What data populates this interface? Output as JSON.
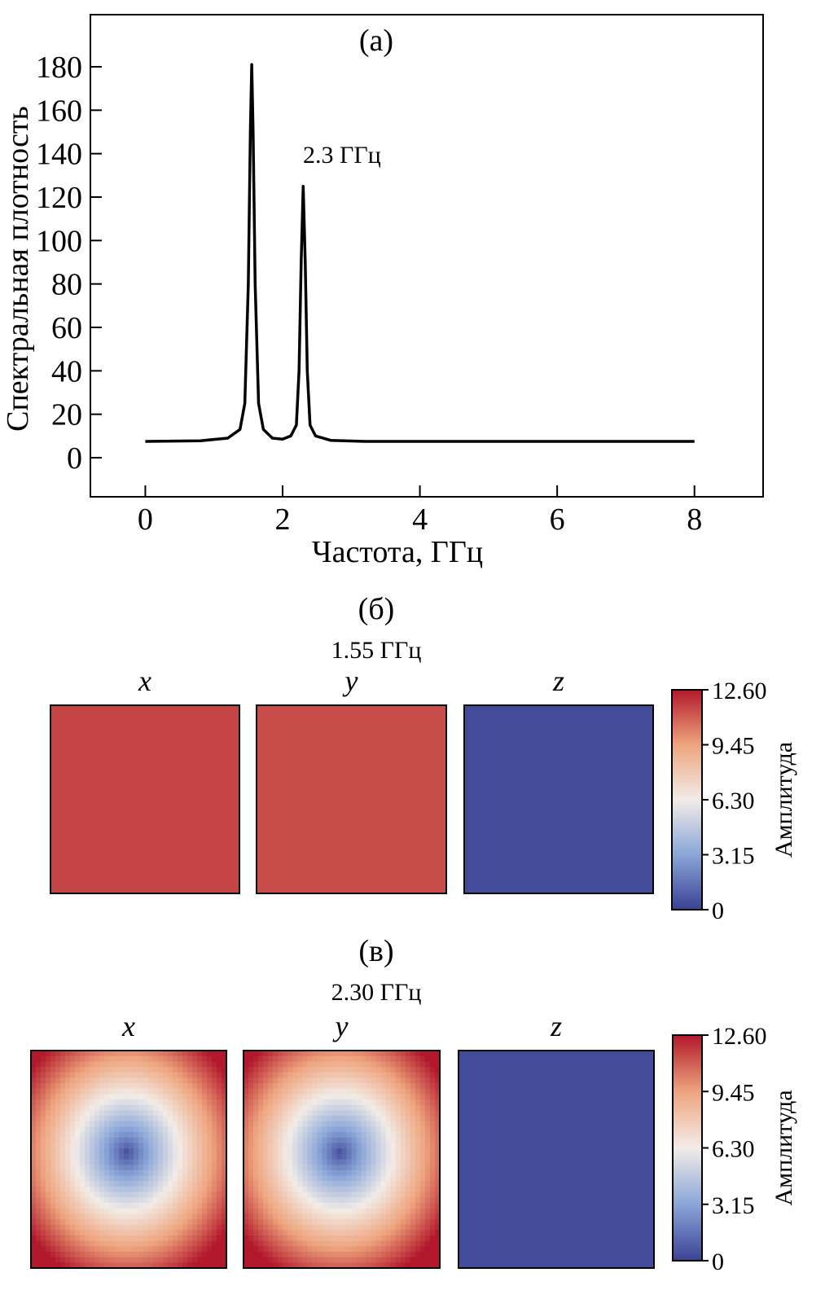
{
  "chart_data": [
    {
      "type": "line",
      "panel_label": "(a)",
      "xlabel": "Частота, ГГц",
      "ylabel": "Спектральная плотность",
      "xlim": [
        -0.8,
        9.0
      ],
      "ylim": [
        -18,
        204
      ],
      "xticks": [
        0,
        2,
        4,
        6,
        8
      ],
      "yticks": [
        0,
        20,
        40,
        60,
        80,
        100,
        120,
        140,
        160,
        180
      ],
      "grid": false,
      "line_color": "#000000",
      "annotation": "2.3 ГГц",
      "x": [
        0,
        0.8,
        1.2,
        1.38,
        1.45,
        1.5,
        1.53,
        1.55,
        1.57,
        1.6,
        1.65,
        1.72,
        1.85,
        2.0,
        2.12,
        2.2,
        2.24,
        2.27,
        2.3,
        2.33,
        2.36,
        2.4,
        2.48,
        2.7,
        3.2,
        8.0
      ],
      "y": [
        7.5,
        7.8,
        9,
        13,
        25,
        80,
        150,
        181,
        150,
        80,
        25,
        13,
        9,
        8.5,
        10,
        15,
        40,
        90,
        125,
        90,
        40,
        15,
        10,
        8,
        7.5,
        7.5
      ]
    },
    {
      "type": "heatmap",
      "panel_label": "(б)",
      "title": "1.55 ГГц",
      "components": [
        "x",
        "y",
        "z"
      ],
      "pattern": "uniform",
      "values": [
        11.6,
        11.4,
        0.3
      ],
      "colorbar_label": "Амплитуда",
      "colorbar_ticks": [
        "12.60",
        "9.45",
        "6.30",
        "3.15",
        "0"
      ],
      "range": [
        0,
        12.6
      ]
    },
    {
      "type": "heatmap",
      "panel_label": "(в)",
      "title": "2.30 ГГц",
      "components": [
        "x",
        "y",
        "z"
      ],
      "pattern": "radial",
      "center_value": 0.3,
      "corner_value": 12.6,
      "z_value": 0.3,
      "colorbar_label": "Амплитуда",
      "colorbar_ticks": [
        "12.60",
        "9.45",
        "6.30",
        "3.15",
        "0"
      ],
      "range": [
        0,
        12.6
      ]
    }
  ],
  "colormap": [
    "#3b4294",
    "#8aa6d8",
    "#f2ece7",
    "#eea47e",
    "#b2182b"
  ]
}
